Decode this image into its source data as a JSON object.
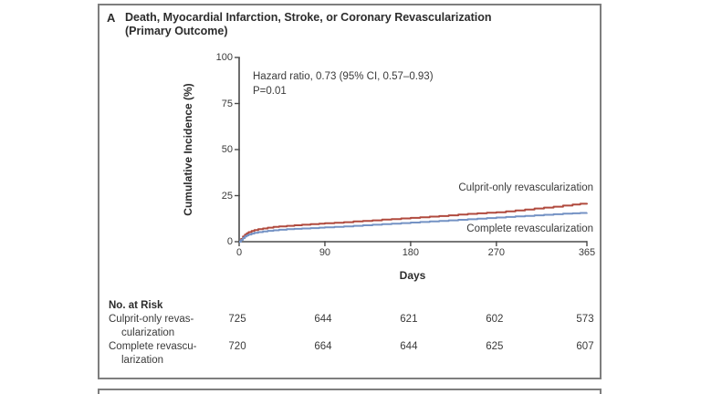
{
  "figure": {
    "panel_label": "A",
    "title_line1": "Death, Myocardial Infarction, Stroke, or Coronary Revascularization",
    "title_line2": "(Primary Outcome)",
    "annotation_line1": "Hazard ratio, 0.73 (95% CI, 0.57–0.93)",
    "annotation_line2": "P=0.01"
  },
  "chart_data": {
    "type": "line",
    "title": "Death, Myocardial Infarction, Stroke, or Coronary Revascularization (Primary Outcome)",
    "xlabel": "Days",
    "ylabel": "Cumulative Incidence (%)",
    "xlim": [
      0,
      365
    ],
    "ylim": [
      0,
      100
    ],
    "x_ticks": [
      0,
      90,
      180,
      270,
      365
    ],
    "y_ticks": [
      0,
      25,
      50,
      75,
      100
    ],
    "grid": false,
    "legend_position": "inline-curve-labels",
    "axis_color": "#4a4a4a",
    "series": [
      {
        "name": "Culprit-only revascularization",
        "color": "#b04a3e",
        "x": [
          0,
          2,
          4,
          6,
          8,
          10,
          13,
          16,
          20,
          25,
          30,
          36,
          42,
          50,
          58,
          66,
          75,
          84,
          90,
          100,
          110,
          120,
          130,
          140,
          150,
          160,
          170,
          180,
          190,
          200,
          210,
          220,
          230,
          240,
          250,
          260,
          270,
          280,
          290,
          300,
          310,
          320,
          330,
          340,
          350,
          358,
          365
        ],
        "y": [
          0,
          1.5,
          2.8,
          3.8,
          4.6,
          5.2,
          5.8,
          6.3,
          6.8,
          7.2,
          7.6,
          8.0,
          8.3,
          8.6,
          8.9,
          9.2,
          9.5,
          9.8,
          10.0,
          10.3,
          10.6,
          11.0,
          11.3,
          11.6,
          12.0,
          12.3,
          12.6,
          12.9,
          13.2,
          13.6,
          13.9,
          14.3,
          14.7,
          15.1,
          15.4,
          15.7,
          16.0,
          16.5,
          17.0,
          17.5,
          18.0,
          18.5,
          19.0,
          19.6,
          20.2,
          20.6,
          21.0
        ]
      },
      {
        "name": "Complete revascularization",
        "color": "#7492c4",
        "x": [
          0,
          2,
          4,
          6,
          8,
          10,
          13,
          16,
          20,
          25,
          30,
          36,
          42,
          50,
          58,
          66,
          75,
          84,
          90,
          100,
          110,
          120,
          130,
          140,
          150,
          160,
          170,
          180,
          190,
          200,
          210,
          220,
          230,
          240,
          250,
          260,
          270,
          280,
          290,
          300,
          310,
          320,
          330,
          340,
          350,
          358,
          365
        ],
        "y": [
          0,
          1.0,
          2.0,
          2.8,
          3.4,
          3.9,
          4.4,
          4.8,
          5.2,
          5.6,
          5.9,
          6.2,
          6.5,
          6.8,
          7.0,
          7.2,
          7.4,
          7.6,
          7.8,
          8.0,
          8.3,
          8.6,
          8.9,
          9.2,
          9.5,
          9.8,
          10.1,
          10.4,
          10.7,
          11.0,
          11.3,
          11.6,
          11.9,
          12.2,
          12.5,
          12.8,
          13.1,
          13.4,
          13.7,
          14.0,
          14.3,
          14.6,
          14.9,
          15.2,
          15.4,
          15.6,
          15.7
        ]
      }
    ]
  },
  "risk_table": {
    "heading": "No. at Risk",
    "columns_days": [
      0,
      90,
      180,
      270,
      365
    ],
    "rows": [
      {
        "label_line1": "Culprit-only revas-",
        "label_line2": "cularization",
        "values": [
          725,
          644,
          621,
          602,
          573
        ]
      },
      {
        "label_line1": "Complete revascu-",
        "label_line2": "larization",
        "values": [
          720,
          664,
          644,
          625,
          607
        ]
      }
    ]
  }
}
